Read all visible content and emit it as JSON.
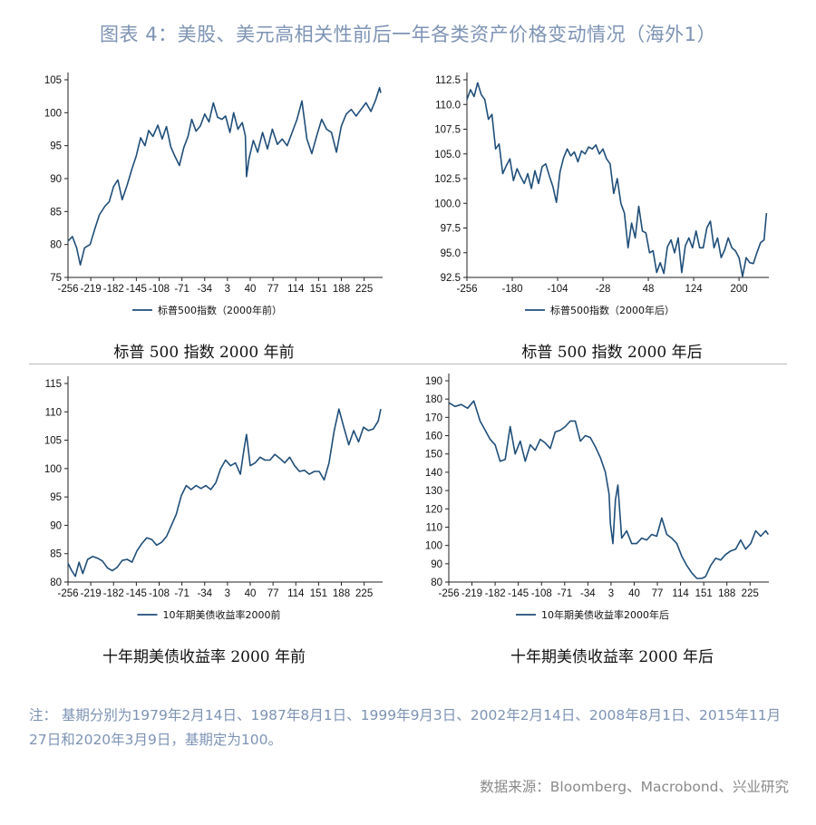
{
  "figure": {
    "title": "图表 4：美股、美元高相关性前后一年各类资产价格变动情况（海外1）",
    "note": "注：  基期分别为1979年2月14日、1987年8月1日、1999年9月3日、2002年2月14日、2008年8月1日、2015年11月27日和2020年3月9日，基期定为100。",
    "source": "数据来源：Bloomberg、Macrobond、兴业研究"
  },
  "colors": {
    "line": "#1f4e79",
    "title": "#7d93b4",
    "note": "#7d93b4",
    "source": "#8a8a8a"
  },
  "chart_data": [
    {
      "type": "line",
      "caption": "标普 500 指数 2000 年前",
      "legend": "标普500指数（2000年前）",
      "xticks": [
        -256,
        -219,
        -182,
        -145,
        -108,
        -71,
        -34,
        3,
        40,
        77,
        114,
        151,
        188,
        225
      ],
      "xlim": [
        -256,
        255
      ],
      "yticks": [
        75,
        80,
        85,
        90,
        95,
        100,
        105
      ],
      "ylim": [
        75,
        105
      ],
      "series": [
        {
          "x": [
            -256,
            -249,
            -242,
            -236,
            -229,
            -220,
            -212,
            -205,
            -196,
            -189,
            -182,
            -175,
            -168,
            -160,
            -152,
            -145,
            -138,
            -131,
            -125,
            -118,
            -110,
            -103,
            -96,
            -89,
            -82,
            -75,
            -68,
            -61,
            -55,
            -48,
            -41,
            -34,
            -27,
            -20,
            -13,
            -6,
            0,
            7,
            13,
            20,
            27,
            32,
            34,
            38,
            45,
            52,
            60,
            68,
            76,
            84,
            92,
            100,
            108,
            116,
            124,
            132,
            140,
            148,
            156,
            164,
            172,
            180,
            188,
            196,
            204,
            212,
            220,
            228,
            236,
            244,
            250,
            252
          ],
          "values": [
            80.5,
            81.2,
            79.5,
            76.9,
            79.5,
            80.0,
            82.5,
            84.5,
            85.8,
            86.5,
            88.8,
            89.8,
            86.8,
            89.0,
            91.5,
            93.5,
            96.2,
            95.0,
            97.3,
            96.4,
            98.1,
            96.0,
            97.9,
            94.8,
            93.3,
            92.0,
            94.7,
            96.4,
            99.0,
            97.2,
            98.0,
            99.8,
            98.6,
            101.5,
            99.3,
            99.0,
            99.5,
            97.0,
            100.0,
            97.5,
            98.5,
            96.5,
            90.3,
            93.0,
            95.8,
            94.0,
            97.0,
            94.5,
            97.5,
            95.2,
            96.0,
            95.0,
            97.0,
            99.0,
            101.8,
            96.0,
            93.8,
            96.5,
            99.0,
            97.5,
            97.0,
            94.0,
            98.0,
            99.8,
            100.5,
            99.5,
            100.5,
            101.5,
            100.2,
            102.0,
            103.8,
            103.0
          ]
        }
      ]
    },
    {
      "type": "line",
      "caption": "标普 500 指数 2000 年后",
      "legend": "标普500指数（2000年后）",
      "xticks": [
        -256,
        -180,
        -104,
        -28,
        48,
        124,
        200
      ],
      "xlim": [
        -256,
        250
      ],
      "yticks": [
        92.5,
        95.0,
        97.5,
        100.0,
        102.5,
        105.0,
        107.5,
        110.0,
        112.5
      ],
      "ylim": [
        92.5,
        112.5
      ],
      "series": [
        {
          "x": [
            -256,
            -250,
            -244,
            -238,
            -232,
            -226,
            -220,
            -214,
            -208,
            -202,
            -196,
            -190,
            -184,
            -178,
            -172,
            -166,
            -160,
            -154,
            -148,
            -142,
            -136,
            -130,
            -124,
            -118,
            -112,
            -106,
            -100,
            -94,
            -88,
            -82,
            -76,
            -70,
            -64,
            -58,
            -52,
            -46,
            -40,
            -34,
            -28,
            -22,
            -16,
            -10,
            -4,
            2,
            8,
            14,
            20,
            26,
            32,
            38,
            44,
            50,
            56,
            62,
            68,
            74,
            80,
            86,
            92,
            98,
            104,
            110,
            116,
            122,
            128,
            134,
            140,
            146,
            152,
            158,
            164,
            170,
            176,
            182,
            188,
            194,
            200,
            206,
            212,
            218,
            224,
            230,
            236,
            242,
            246
          ],
          "values": [
            110.5,
            111.5,
            110.8,
            112.2,
            111.0,
            110.5,
            108.5,
            109.0,
            105.5,
            106.0,
            103.0,
            103.8,
            104.5,
            102.3,
            103.5,
            102.7,
            102.0,
            103.0,
            101.5,
            103.3,
            102.0,
            103.7,
            104.0,
            102.8,
            101.7,
            100.1,
            103.2,
            104.6,
            105.5,
            104.8,
            105.2,
            104.2,
            105.3,
            105.0,
            105.7,
            105.5,
            105.9,
            105.0,
            105.5,
            104.5,
            104.0,
            101.0,
            102.5,
            100.0,
            99.0,
            95.5,
            98.0,
            96.5,
            99.7,
            97.2,
            97.0,
            95.0,
            95.2,
            93.0,
            94.0,
            92.9,
            95.6,
            96.3,
            95.0,
            96.5,
            93.0,
            95.7,
            96.5,
            95.5,
            97.2,
            95.5,
            95.5,
            97.5,
            98.2,
            95.5,
            96.5,
            94.5,
            95.3,
            96.5,
            95.5,
            95.2,
            94.5,
            92.6,
            94.5,
            94.0,
            93.9,
            95.0,
            96.0,
            96.3,
            99.0
          ]
        }
      ]
    },
    {
      "type": "line",
      "caption": "十年期美债收益率 2000 年前",
      "legend": "10年期美债收益率2000前",
      "xticks": [
        -256,
        -219,
        -182,
        -145,
        -108,
        -71,
        -34,
        3,
        40,
        77,
        114,
        151,
        188,
        225
      ],
      "xlim": [
        -256,
        255
      ],
      "yticks": [
        80,
        85,
        90,
        95,
        100,
        105,
        110,
        115
      ],
      "ylim": [
        80,
        115
      ],
      "series": [
        {
          "x": [
            -256,
            -250,
            -244,
            -238,
            -232,
            -224,
            -216,
            -208,
            -200,
            -192,
            -184,
            -176,
            -168,
            -160,
            -152,
            -144,
            -136,
            -128,
            -120,
            -112,
            -104,
            -96,
            -88,
            -80,
            -72,
            -64,
            -56,
            -48,
            -40,
            -32,
            -24,
            -16,
            -8,
            0,
            8,
            16,
            24,
            30,
            34,
            40,
            48,
            56,
            64,
            72,
            80,
            88,
            96,
            104,
            112,
            120,
            128,
            136,
            144,
            152,
            160,
            168,
            176,
            184,
            192,
            200,
            208,
            216,
            224,
            232,
            240,
            248,
            252
          ],
          "values": [
            83.3,
            82.0,
            81.0,
            83.5,
            81.5,
            84.0,
            84.5,
            84.2,
            83.7,
            82.5,
            82.0,
            82.6,
            83.8,
            84.0,
            83.5,
            85.5,
            86.8,
            87.8,
            87.5,
            86.5,
            87.0,
            88.0,
            90.0,
            92.0,
            95.2,
            97.0,
            96.3,
            97.0,
            96.5,
            97.0,
            96.3,
            97.5,
            100.0,
            101.5,
            100.5,
            101.0,
            99.0,
            103.5,
            106.0,
            100.5,
            101.0,
            102.0,
            101.5,
            101.5,
            102.5,
            101.8,
            101.0,
            102.0,
            100.5,
            99.5,
            99.7,
            99.0,
            99.5,
            99.5,
            98.0,
            101.0,
            106.5,
            110.5,
            107.3,
            104.2,
            106.7,
            104.7,
            107.3,
            106.7,
            107.0,
            108.4,
            110.5
          ]
        }
      ]
    },
    {
      "type": "line",
      "caption": "十年期美债收益率 2000 年后",
      "legend": "10年期美债收益率2000年后",
      "xticks": [
        -256,
        -219,
        -182,
        -145,
        -108,
        -71,
        -34,
        3,
        40,
        77,
        114,
        151,
        188,
        225
      ],
      "xlim": [
        -256,
        255
      ],
      "yticks": [
        80,
        90,
        100,
        110,
        120,
        130,
        140,
        150,
        160,
        170,
        180,
        190
      ],
      "ylim": [
        80,
        190
      ],
      "series": [
        {
          "x": [
            -256,
            -246,
            -236,
            -226,
            -216,
            -206,
            -198,
            -190,
            -182,
            -174,
            -166,
            -158,
            -150,
            -142,
            -134,
            -126,
            -118,
            -110,
            -102,
            -94,
            -86,
            -78,
            -70,
            -62,
            -54,
            -46,
            -38,
            -30,
            -22,
            -14,
            -6,
            0,
            2,
            6,
            10,
            14,
            20,
            28,
            36,
            44,
            52,
            60,
            68,
            76,
            84,
            92,
            100,
            108,
            116,
            124,
            132,
            140,
            148,
            154,
            162,
            170,
            178,
            186,
            194,
            202,
            210,
            218,
            226,
            234,
            242,
            250,
            254
          ],
          "values": [
            178,
            176,
            177,
            175,
            179,
            168,
            163,
            158,
            155,
            146,
            147,
            165,
            150,
            157,
            146,
            155,
            152,
            158,
            156,
            153,
            162,
            163,
            165,
            168,
            168,
            157,
            160,
            159,
            154,
            148,
            140,
            128,
            112,
            101,
            125,
            133,
            104,
            108,
            101,
            101,
            104,
            103,
            106,
            105,
            115,
            106,
            104,
            101,
            94,
            89,
            85,
            82,
            82,
            83,
            89,
            93,
            92,
            95,
            97,
            98,
            103,
            98,
            101,
            108,
            105,
            108,
            106
          ]
        }
      ]
    }
  ]
}
